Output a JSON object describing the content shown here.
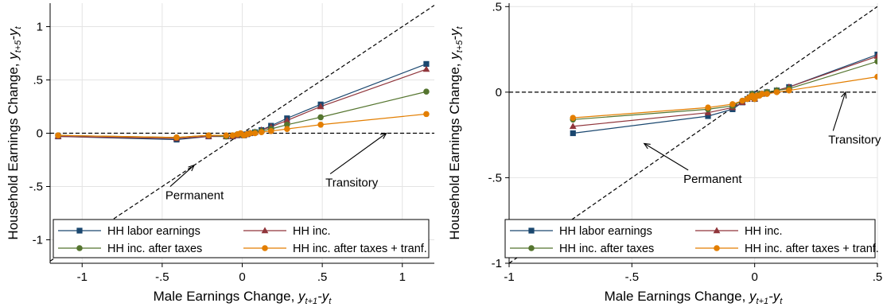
{
  "chart_data": [
    {
      "type": "line",
      "xlabel_main": "Male Earnings Change, ",
      "xlabel_var": "y",
      "xlabel_sub1": "t+1",
      "xlabel_mid": "-y",
      "xlabel_sub2": "t",
      "ylabel_main": "Household Earnings Change, ",
      "ylabel_var": "y",
      "ylabel_sub1": "t+5",
      "ylabel_mid": "-y",
      "ylabel_sub2": "t",
      "xlim": [
        -1.2,
        1.2
      ],
      "ylim": [
        -1.22,
        1.22
      ],
      "x_ticks": [
        -1,
        -0.5,
        0,
        0.5,
        1
      ],
      "x_tick_labels": [
        "-1",
        "-.5",
        "0",
        ".5",
        "1"
      ],
      "y_ticks": [
        -1,
        -0.5,
        0,
        0.5,
        1
      ],
      "y_tick_labels": [
        "-1",
        "-.5",
        "0",
        ".5",
        "1"
      ],
      "grid": true,
      "legend_position": "bottom",
      "reference_lines": [
        {
          "label": "Permanent",
          "slope": 1,
          "intercept": 0
        },
        {
          "label": "Transitory",
          "slope": 0,
          "intercept": 0
        }
      ],
      "annotations": [
        {
          "text": "Permanent",
          "text_x": -0.48,
          "text_y": -0.62,
          "arrow_to": [
            -0.3,
            -0.3
          ]
        },
        {
          "text": "Transitory",
          "text_x": 0.52,
          "text_y": -0.5,
          "arrow_to": [
            0.9,
            0.0
          ]
        }
      ],
      "x": [
        -1.15,
        -0.41,
        -0.21,
        -0.1,
        -0.06,
        -0.03,
        -0.01,
        0.01,
        0.03,
        0.05,
        0.08,
        0.12,
        0.18,
        0.28,
        0.49,
        1.15
      ],
      "series": [
        {
          "name": "HH labor earnings",
          "color": "#1a476f",
          "marker": "square",
          "values": [
            -0.03,
            -0.06,
            -0.03,
            -0.03,
            -0.03,
            -0.02,
            -0.01,
            -0.02,
            -0.01,
            0.0,
            0.01,
            0.03,
            0.07,
            0.14,
            0.27,
            0.65
          ]
        },
        {
          "name": "HH inc.",
          "color": "#90353b",
          "marker": "triangle",
          "values": [
            -0.03,
            -0.05,
            -0.03,
            -0.03,
            -0.03,
            -0.02,
            -0.01,
            -0.02,
            -0.01,
            0.0,
            0.01,
            0.03,
            0.06,
            0.12,
            0.25,
            0.6
          ]
        },
        {
          "name": "HH inc. after taxes",
          "color": "#55752f",
          "marker": "circle",
          "values": [
            -0.02,
            -0.04,
            -0.02,
            -0.03,
            -0.02,
            -0.01,
            -0.01,
            -0.02,
            -0.01,
            0.0,
            0.01,
            0.02,
            0.04,
            0.08,
            0.15,
            0.39
          ]
        },
        {
          "name": "HH inc. after taxes + tranf.",
          "color": "#e37e00",
          "marker": "circle",
          "values": [
            -0.02,
            -0.04,
            -0.02,
            -0.02,
            -0.02,
            -0.01,
            0.0,
            -0.02,
            -0.01,
            0.0,
            0.0,
            0.01,
            0.02,
            0.04,
            0.08,
            0.18
          ]
        }
      ]
    },
    {
      "type": "line",
      "xlabel_main": "Male Earnings Change, ",
      "xlabel_var": "y",
      "xlabel_sub1": "t+1",
      "xlabel_mid": "-y",
      "xlabel_sub2": "t",
      "ylabel_main": "Household Earnings Change, ",
      "ylabel_var": "y",
      "ylabel_sub1": "t+5",
      "ylabel_mid": "-y",
      "ylabel_sub2": "t",
      "xlim": [
        -1.0,
        0.5
      ],
      "ylim": [
        -1.0,
        0.52
      ],
      "x_ticks": [
        -1,
        -0.5,
        0,
        0.5
      ],
      "x_tick_labels": [
        "-1",
        "-.5",
        "0",
        ".5"
      ],
      "y_ticks": [
        -1,
        -0.5,
        0,
        0.5
      ],
      "y_tick_labels": [
        "-1",
        "-.5",
        "0",
        ".5"
      ],
      "grid": true,
      "legend_position": "bottom",
      "reference_lines": [
        {
          "label": "Permanent",
          "slope": 1,
          "intercept": 0
        },
        {
          "label": "Transitory",
          "slope": 0,
          "intercept": 0
        }
      ],
      "annotations": [
        {
          "text": "Permanent",
          "text_x": -0.29,
          "text_y": -0.53,
          "arrow_to": [
            -0.45,
            -0.3
          ]
        },
        {
          "text": "Transitory",
          "text_x": 0.3,
          "text_y": -0.3,
          "arrow_to": [
            0.37,
            0.0
          ]
        }
      ],
      "x": [
        -0.74,
        -0.19,
        -0.09,
        -0.05,
        -0.03,
        -0.02,
        -0.01,
        0.0,
        0.01,
        0.02,
        0.03,
        0.05,
        0.09,
        0.14,
        0.5
      ],
      "series": [
        {
          "name": "HH labor earnings",
          "color": "#1a476f",
          "marker": "square",
          "values": [
            -0.24,
            -0.14,
            -0.1,
            -0.06,
            -0.04,
            -0.03,
            -0.01,
            -0.04,
            -0.02,
            -0.01,
            -0.01,
            0.0,
            0.01,
            0.03,
            0.22
          ]
        },
        {
          "name": "HH inc.",
          "color": "#90353b",
          "marker": "triangle",
          "values": [
            -0.2,
            -0.12,
            -0.09,
            -0.06,
            -0.04,
            -0.03,
            -0.01,
            -0.04,
            -0.02,
            -0.01,
            -0.01,
            0.0,
            0.01,
            0.03,
            0.21
          ]
        },
        {
          "name": "HH inc. after taxes",
          "color": "#55752f",
          "marker": "circle",
          "values": [
            -0.16,
            -0.1,
            -0.08,
            -0.05,
            -0.04,
            -0.03,
            -0.01,
            -0.04,
            -0.02,
            -0.01,
            -0.01,
            0.0,
            0.01,
            0.02,
            0.18
          ]
        },
        {
          "name": "HH inc. after taxes + tranf.",
          "color": "#e37e00",
          "marker": "circle",
          "values": [
            -0.15,
            -0.09,
            -0.07,
            -0.05,
            -0.04,
            -0.03,
            -0.02,
            -0.04,
            -0.02,
            -0.02,
            -0.01,
            -0.01,
            0.0,
            0.01,
            0.09
          ]
        }
      ]
    }
  ]
}
